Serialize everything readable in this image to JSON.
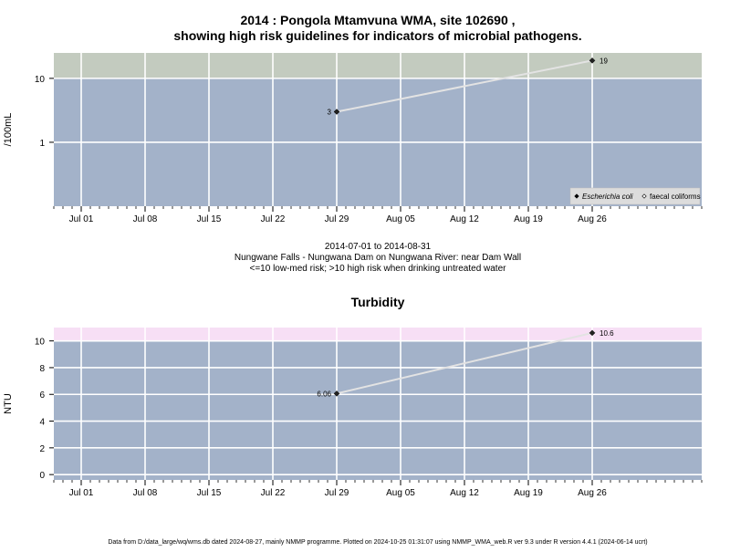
{
  "chart_data": [
    {
      "type": "line",
      "title": "2014 : Pongola Mtamvuna WMA, site 102690 ,",
      "subtitle": "showing high risk guidelines for indicators of microbial pathogens.",
      "xlabel": "",
      "ylabel": "/100mL",
      "y_scale": "log",
      "ylim": [
        0.1,
        25
      ],
      "xlim": [
        "2014-06-28",
        "2014-09-07"
      ],
      "x_ticks": [
        "2014-07-01",
        "2014-07-08",
        "2014-07-15",
        "2014-07-22",
        "2014-07-29",
        "2014-08-05",
        "2014-08-12",
        "2014-08-19",
        "2014-08-26"
      ],
      "x_tick_labels": [
        "Jul 01",
        "Jul 08",
        "Jul 15",
        "Jul 22",
        "Jul 29",
        "Aug 05",
        "Aug 12",
        "Aug 19",
        "Aug 26"
      ],
      "y_ticks": [
        1,
        10
      ],
      "y_tick_labels": [
        "1",
        "10"
      ],
      "guideline_band": {
        "from": 10,
        "to": 25,
        "color": "#c3cbbf"
      },
      "background_color": "#a3b2c9",
      "grid": true,
      "series": [
        {
          "name": "Escherichia coli",
          "marker": "filled-diamond",
          "x": [
            "2014-07-29",
            "2014-08-26"
          ],
          "values": [
            3,
            19
          ],
          "labels": [
            "3",
            "19"
          ]
        },
        {
          "name": "faecal coliforms",
          "marker": "open-diamond",
          "x": [],
          "values": []
        }
      ],
      "legend": {
        "position": "bottom-right",
        "entries": [
          "Escherichia coli",
          "faecal coliforms"
        ]
      },
      "caption": [
        "2014-07-01 to 2014-08-31",
        "Nungwane Falls - Nungwana Dam on Nungwana River: near Dam Wall",
        "<=10 low-med risk; >10 high risk when drinking untreated water"
      ]
    },
    {
      "type": "line",
      "title": "Turbidity",
      "xlabel": "",
      "ylabel": "NTU",
      "ylim": [
        -0.4,
        11
      ],
      "xlim": [
        "2014-06-28",
        "2014-09-07"
      ],
      "x_ticks": [
        "2014-07-01",
        "2014-07-08",
        "2014-07-15",
        "2014-07-22",
        "2014-07-29",
        "2014-08-05",
        "2014-08-12",
        "2014-08-19",
        "2014-08-26"
      ],
      "x_tick_labels": [
        "Jul 01",
        "Jul 08",
        "Jul 15",
        "Jul 22",
        "Jul 29",
        "Aug 05",
        "Aug 12",
        "Aug 19",
        "Aug 26"
      ],
      "y_ticks": [
        0,
        2,
        4,
        6,
        8,
        10
      ],
      "y_tick_labels": [
        "0",
        "2",
        "4",
        "6",
        "8",
        "10"
      ],
      "guideline_band": {
        "from": 10,
        "to": 11,
        "color": "#f7dff5"
      },
      "background_color": "#a3b2c9",
      "grid": true,
      "series": [
        {
          "x": [
            "2014-07-29",
            "2014-08-26"
          ],
          "values": [
            6.06,
            10.6
          ],
          "labels": [
            "6.06",
            "10.6"
          ]
        }
      ]
    }
  ],
  "footer": "Data from D:/data_large/wq/wms.db dated 2024-08-27, mainly NMMP programme. Plotted on 2024-10-25 01:31:07 using NMMP_WMA_web.R ver 9.3 under R version 4.4.1 (2024-06-14 ucrt)",
  "colors": {
    "line": "#e3e3e3",
    "point": "#222222",
    "grid": "#ffffff",
    "text": "#000000"
  }
}
